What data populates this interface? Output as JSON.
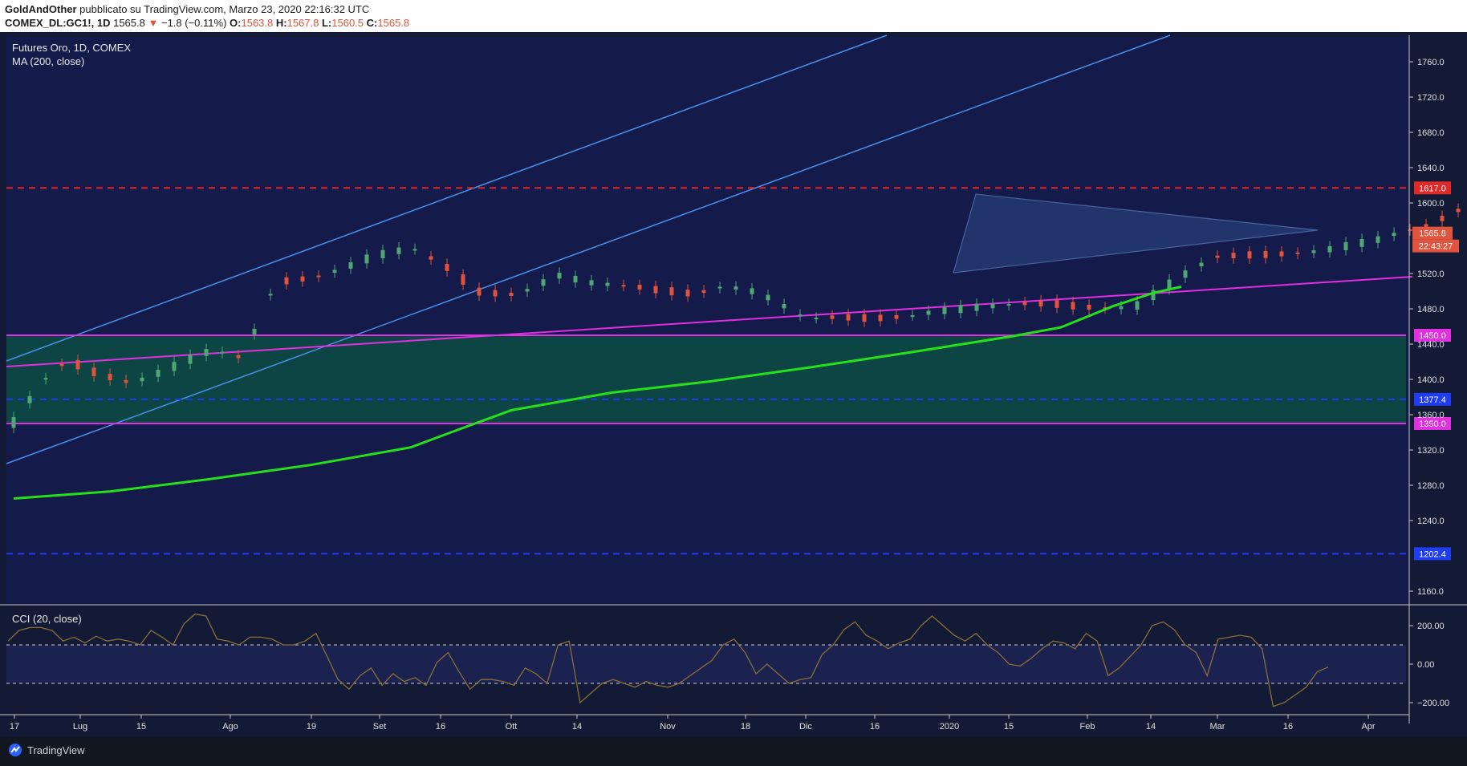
{
  "header": {
    "author": "GoldAndOther",
    "published": "pubblicato su TradingView.com, Marzo 23, 2020 22:16:32 UTC",
    "symbol": "COMEX_DL:GC1!, 1D",
    "last": "1565.8",
    "change": "−1.8 (−0.11%)",
    "o_label": "O:",
    "o": "1563.8",
    "h_label": "H:",
    "h": "1567.8",
    "l_label": "L:",
    "l": "1560.5",
    "c_label": "C:",
    "c": "1565.8"
  },
  "legend": {
    "title": "Futures Oro, 1D, COMEX",
    "ma": "MA (200, close)",
    "cci": "CCI (20, close)"
  },
  "footer": {
    "brand": "TradingView"
  },
  "colors": {
    "up": "#4fa874",
    "down": "#e0533c",
    "ma": "#25e01a",
    "channel": "#4b8fe8",
    "support": "#e030e0",
    "red_level": "#e02828",
    "blue_level": "#1f3cf0",
    "cci": "#8a6e37",
    "bg": "#131a35",
    "zone": "#0b4a43"
  },
  "chart_data": {
    "type": "candlestick",
    "y_ticks": [
      "1760.0",
      "1720.0",
      "1680.0",
      "1640.0",
      "1600.0",
      "1520.0",
      "1480.0",
      "1440.0",
      "1400.0",
      "1360.0",
      "1320.0",
      "1280.0",
      "1240.0",
      "1160.0"
    ],
    "x_ticks": [
      "17",
      "Lug",
      "15",
      "Ago",
      "19",
      "Set",
      "16",
      "Ott",
      "14",
      "Nov",
      "18",
      "Dic",
      "16",
      "2020",
      "15",
      "Feb",
      "14",
      "Mar",
      "16",
      "Apr"
    ],
    "levels": [
      {
        "price": 1617.0,
        "label": "1617.0",
        "color": "#e02828",
        "style": "dashed"
      },
      {
        "price": 1450.0,
        "label": "1450.0",
        "color": "#e030e0",
        "style": "solid"
      },
      {
        "price": 1377.4,
        "label": "1377.4",
        "color": "#1f3cf0",
        "style": "dashed"
      },
      {
        "price": 1350.0,
        "label": "1350.0",
        "color": "#e030e0",
        "style": "solid"
      },
      {
        "price": 1202.4,
        "label": "1202.4",
        "color": "#1f3cf0",
        "style": "dashed"
      }
    ],
    "last_price": {
      "label": "1565.8",
      "countdown": "22:43:27"
    },
    "ma200": [
      [
        1,
        1265
      ],
      [
        25,
        1273
      ],
      [
        50,
        1287
      ],
      [
        75,
        1303
      ],
      [
        100,
        1323
      ],
      [
        110,
        1340
      ],
      [
        125,
        1365
      ],
      [
        150,
        1385
      ],
      [
        175,
        1398
      ],
      [
        200,
        1414
      ],
      [
        225,
        1431
      ],
      [
        250,
        1449
      ],
      [
        262,
        1459
      ],
      [
        275,
        1483
      ],
      [
        285,
        1498
      ],
      [
        292,
        1505
      ]
    ],
    "cci_ticks": [
      "200.00",
      "0.00",
      "−200.00"
    ],
    "cci_levels": [
      100,
      -100
    ],
    "cci": [
      120,
      175,
      190,
      190,
      175,
      120,
      140,
      110,
      145,
      120,
      130,
      120,
      100,
      175,
      140,
      100,
      210,
      260,
      250,
      130,
      120,
      100,
      140,
      140,
      130,
      100,
      100,
      120,
      160,
      40,
      -80,
      -130,
      -60,
      -20,
      -110,
      -50,
      -90,
      -70,
      -110,
      10,
      60,
      -40,
      -130,
      -80,
      -80,
      -90,
      -110,
      -20,
      -50,
      -100,
      100,
      120,
      -200,
      -150,
      -100,
      -80,
      -100,
      -120,
      -90,
      -110,
      -120,
      -100,
      -60,
      -20,
      20,
      100,
      130,
      60,
      -50,
      0,
      -50,
      -100,
      -80,
      -70,
      50,
      100,
      180,
      220,
      150,
      120,
      80,
      110,
      130,
      200,
      250,
      200,
      150,
      120,
      160,
      100,
      60,
      0,
      -10,
      30,
      80,
      120,
      110,
      80,
      160,
      120,
      -60,
      -20,
      40,
      100,
      200,
      220,
      180,
      100,
      60,
      -60,
      130,
      140,
      150,
      140,
      80,
      -220,
      -200,
      -160,
      -120,
      -40,
      -15
    ]
  }
}
